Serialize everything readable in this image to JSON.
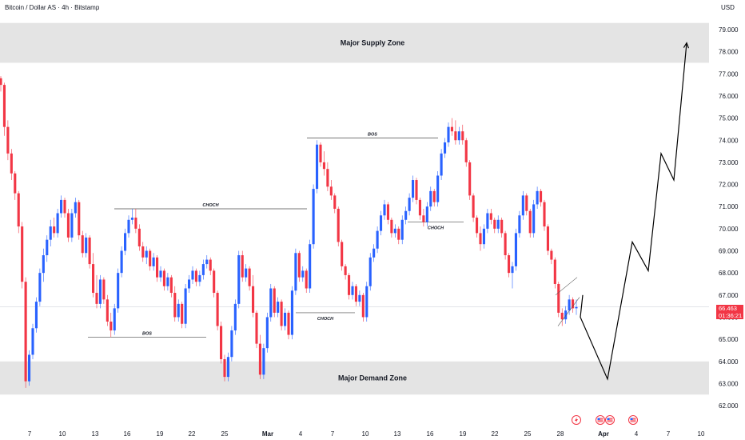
{
  "header": {
    "symbol": "Bitcoin / Dollar AS · 4h · Bitstamp",
    "currency": "USD"
  },
  "price_tag": {
    "price": "66.463",
    "countdown": "01:36:21",
    "color": "#f23645"
  },
  "colors": {
    "up": "#2962ff",
    "down": "#f23645",
    "zone": "#e4e4e4",
    "projection": "#000000"
  },
  "event_icons": [
    "lightning-icon",
    "us-flag-icon",
    "us-flag-icon",
    "us-flag-icon"
  ],
  "chart_data": {
    "type": "candlestick",
    "symbol": "Bitcoin / Dollar AS",
    "timeframe": "4h",
    "exchange": "Bitstamp",
    "y_axis": {
      "label": "USD",
      "ylim": [
        61.6,
        79.9
      ],
      "ticks": [
        "79.000",
        "78.000",
        "77.000",
        "76.000",
        "75.000",
        "74.000",
        "73.000",
        "72.000",
        "71.000",
        "70.000",
        "69.000",
        "68.000",
        "67.000",
        "66.000",
        "65.000",
        "64.000",
        "63.000",
        "62.000"
      ]
    },
    "x_axis": {
      "ticks": [
        "7",
        "10",
        "13",
        "16",
        "19",
        "22",
        "25",
        "Mar",
        "4",
        "7",
        "10",
        "13",
        "16",
        "19",
        "22",
        "25",
        "28",
        "Apr",
        "4",
        "7",
        "10"
      ]
    },
    "zones": [
      {
        "label": "Major Supply Zone",
        "from": 77.5,
        "to": 79.3
      },
      {
        "label": "Major Demand Zone",
        "from": 62.5,
        "to": 64.0
      }
    ],
    "structure_lines": [
      {
        "label": "BOS",
        "value": 65.1
      },
      {
        "label": "CHOCH",
        "value": 70.9
      },
      {
        "label": "BOS",
        "value": 74.1
      },
      {
        "label": "CHOCH",
        "value": 66.2
      },
      {
        "label": "CHOCH",
        "value": 70.3
      }
    ],
    "current_price": 66.463,
    "ohlc": [
      [
        76.8,
        76.9,
        76.2,
        76.5
      ],
      [
        76.5,
        76.6,
        74.2,
        74.6
      ],
      [
        74.6,
        74.9,
        73.1,
        73.4
      ],
      [
        73.4,
        73.6,
        72.2,
        72.5
      ],
      [
        72.5,
        72.6,
        71.3,
        71.6
      ],
      [
        71.6,
        71.7,
        69.8,
        70.1
      ],
      [
        70.1,
        70.3,
        67.3,
        67.6
      ],
      [
        67.6,
        67.8,
        62.8,
        63.1
      ],
      [
        63.1,
        64.5,
        62.9,
        64.3
      ],
      [
        64.3,
        65.7,
        64.1,
        65.5
      ],
      [
        65.5,
        66.9,
        65.3,
        66.7
      ],
      [
        66.7,
        68.2,
        66.5,
        68.0
      ],
      [
        68.0,
        69.1,
        67.6,
        68.8
      ],
      [
        68.8,
        69.7,
        68.5,
        69.5
      ],
      [
        69.5,
        70.4,
        69.2,
        70.1
      ],
      [
        70.1,
        70.5,
        69.6,
        69.8
      ],
      [
        69.8,
        70.9,
        69.6,
        70.7
      ],
      [
        70.7,
        71.5,
        70.5,
        71.3
      ],
      [
        71.3,
        71.4,
        70.5,
        70.7
      ],
      [
        70.7,
        70.9,
        69.4,
        69.6
      ],
      [
        69.6,
        70.9,
        69.4,
        70.7
      ],
      [
        70.7,
        71.4,
        70.5,
        71.2
      ],
      [
        71.2,
        71.3,
        69.5,
        69.7
      ],
      [
        69.7,
        69.9,
        68.7,
        68.9
      ],
      [
        68.9,
        69.8,
        68.7,
        69.6
      ],
      [
        69.6,
        69.7,
        68.2,
        68.4
      ],
      [
        68.4,
        68.9,
        66.9,
        67.1
      ],
      [
        67.1,
        67.9,
        66.4,
        66.6
      ],
      [
        66.6,
        67.9,
        66.4,
        67.7
      ],
      [
        67.7,
        67.8,
        66.6,
        66.8
      ],
      [
        66.8,
        67.0,
        65.6,
        65.8
      ],
      [
        65.8,
        66.2,
        65.1,
        65.4
      ],
      [
        65.4,
        66.6,
        65.2,
        66.4
      ],
      [
        66.4,
        68.2,
        66.2,
        68.0
      ],
      [
        68.0,
        69.2,
        67.8,
        69.0
      ],
      [
        69.0,
        70.0,
        68.8,
        69.8
      ],
      [
        69.8,
        70.6,
        69.6,
        70.4
      ],
      [
        70.4,
        70.9,
        70.2,
        70.5
      ],
      [
        70.5,
        70.9,
        69.8,
        70.0
      ],
      [
        70.0,
        70.2,
        69.0,
        69.2
      ],
      [
        69.2,
        69.4,
        68.5,
        68.7
      ],
      [
        68.7,
        69.2,
        68.4,
        69.0
      ],
      [
        69.0,
        69.1,
        68.1,
        68.3
      ],
      [
        68.3,
        68.9,
        68.1,
        68.7
      ],
      [
        68.7,
        68.8,
        67.6,
        67.8
      ],
      [
        67.8,
        68.3,
        67.6,
        68.1
      ],
      [
        68.1,
        68.2,
        67.2,
        67.4
      ],
      [
        67.4,
        68.0,
        67.2,
        67.8
      ],
      [
        67.8,
        67.9,
        66.9,
        67.1
      ],
      [
        67.1,
        67.4,
        65.8,
        66.0
      ],
      [
        66.0,
        66.8,
        65.8,
        66.6
      ],
      [
        66.6,
        66.7,
        65.5,
        65.7
      ],
      [
        65.7,
        67.5,
        65.5,
        67.3
      ],
      [
        67.3,
        67.9,
        67.1,
        67.7
      ],
      [
        67.7,
        68.3,
        67.5,
        68.1
      ],
      [
        68.1,
        68.2,
        67.4,
        67.6
      ],
      [
        67.6,
        68.1,
        67.4,
        67.9
      ],
      [
        67.9,
        68.6,
        67.7,
        68.4
      ],
      [
        68.4,
        68.8,
        68.2,
        68.6
      ],
      [
        68.6,
        68.7,
        67.9,
        68.1
      ],
      [
        68.1,
        68.2,
        66.9,
        67.1
      ],
      [
        67.1,
        67.2,
        65.4,
        65.6
      ],
      [
        65.6,
        65.8,
        63.9,
        64.1
      ],
      [
        64.1,
        64.3,
        63.1,
        63.3
      ],
      [
        63.3,
        64.4,
        63.1,
        64.2
      ],
      [
        64.2,
        65.6,
        64.0,
        65.4
      ],
      [
        65.4,
        66.8,
        65.2,
        66.6
      ],
      [
        66.6,
        69.0,
        66.4,
        68.8
      ],
      [
        68.8,
        69.0,
        67.6,
        67.8
      ],
      [
        67.8,
        68.4,
        67.6,
        68.2
      ],
      [
        68.2,
        68.3,
        67.2,
        67.4
      ],
      [
        67.4,
        67.9,
        66.0,
        66.2
      ],
      [
        66.2,
        66.3,
        64.6,
        64.8
      ],
      [
        64.8,
        65.2,
        63.2,
        63.4
      ],
      [
        63.4,
        64.8,
        63.2,
        64.6
      ],
      [
        64.6,
        66.2,
        64.4,
        66.0
      ],
      [
        66.0,
        67.5,
        65.8,
        67.3
      ],
      [
        67.3,
        67.4,
        66.0,
        66.2
      ],
      [
        66.2,
        66.9,
        66.0,
        66.7
      ],
      [
        66.7,
        66.8,
        65.4,
        65.6
      ],
      [
        65.6,
        66.4,
        65.4,
        66.2
      ],
      [
        66.2,
        66.3,
        65.0,
        65.2
      ],
      [
        65.2,
        67.4,
        65.0,
        67.2
      ],
      [
        67.2,
        69.1,
        67.0,
        68.9
      ],
      [
        68.9,
        69.0,
        67.6,
        67.8
      ],
      [
        67.8,
        68.3,
        67.6,
        68.1
      ],
      [
        68.1,
        68.2,
        67.1,
        67.3
      ],
      [
        67.3,
        69.5,
        67.1,
        69.3
      ],
      [
        69.3,
        72.0,
        69.1,
        71.8
      ],
      [
        71.8,
        74.0,
        71.6,
        73.8
      ],
      [
        73.8,
        73.9,
        72.8,
        73.0
      ],
      [
        73.0,
        73.5,
        72.4,
        72.7
      ],
      [
        72.7,
        73.0,
        71.7,
        71.9
      ],
      [
        71.9,
        72.2,
        71.3,
        71.5
      ],
      [
        71.5,
        71.6,
        70.7,
        70.9
      ],
      [
        70.9,
        71.0,
        69.2,
        69.4
      ],
      [
        69.4,
        69.5,
        68.1,
        68.3
      ],
      [
        68.3,
        68.4,
        67.7,
        67.9
      ],
      [
        67.9,
        68.0,
        66.8,
        67.0
      ],
      [
        67.0,
        67.6,
        66.8,
        67.4
      ],
      [
        67.4,
        67.5,
        66.5,
        66.7
      ],
      [
        66.7,
        67.2,
        66.5,
        67.0
      ],
      [
        67.0,
        67.1,
        65.8,
        66.0
      ],
      [
        66.0,
        67.6,
        65.8,
        67.4
      ],
      [
        67.4,
        68.9,
        67.2,
        68.7
      ],
      [
        68.7,
        69.3,
        68.5,
        69.1
      ],
      [
        69.1,
        70.1,
        68.9,
        69.9
      ],
      [
        69.9,
        70.8,
        69.7,
        70.6
      ],
      [
        70.6,
        71.3,
        70.4,
        71.1
      ],
      [
        71.1,
        71.2,
        70.2,
        70.4
      ],
      [
        70.4,
        70.5,
        69.6,
        69.8
      ],
      [
        69.8,
        70.2,
        69.6,
        70.0
      ],
      [
        70.0,
        70.1,
        69.3,
        69.5
      ],
      [
        69.5,
        70.6,
        69.3,
        70.4
      ],
      [
        70.4,
        71.0,
        70.2,
        70.8
      ],
      [
        70.8,
        71.6,
        70.6,
        71.4
      ],
      [
        71.4,
        72.4,
        71.2,
        72.2
      ],
      [
        72.2,
        72.3,
        71.1,
        71.3
      ],
      [
        71.3,
        71.4,
        70.4,
        70.6
      ],
      [
        70.6,
        70.9,
        70.1,
        70.3
      ],
      [
        70.3,
        71.2,
        70.1,
        71.0
      ],
      [
        71.0,
        71.9,
        70.8,
        71.7
      ],
      [
        71.7,
        71.8,
        71.0,
        71.2
      ],
      [
        71.2,
        72.6,
        71.0,
        72.4
      ],
      [
        72.4,
        73.6,
        72.2,
        73.4
      ],
      [
        73.4,
        74.1,
        73.2,
        73.9
      ],
      [
        73.9,
        74.8,
        73.7,
        74.6
      ],
      [
        74.6,
        75.0,
        74.2,
        74.4
      ],
      [
        74.4,
        74.9,
        73.8,
        74.0
      ],
      [
        74.0,
        74.6,
        73.8,
        74.4
      ],
      [
        74.4,
        74.7,
        73.8,
        74.0
      ],
      [
        74.0,
        74.1,
        72.8,
        73.0
      ],
      [
        73.0,
        73.1,
        71.3,
        71.5
      ],
      [
        71.5,
        71.6,
        70.3,
        70.5
      ],
      [
        70.5,
        70.6,
        69.6,
        69.8
      ],
      [
        69.8,
        70.1,
        69.0,
        69.3
      ],
      [
        69.3,
        70.2,
        69.1,
        70.0
      ],
      [
        70.0,
        70.9,
        69.8,
        70.7
      ],
      [
        70.7,
        70.9,
        70.2,
        70.4
      ],
      [
        70.4,
        70.5,
        69.8,
        70.0
      ],
      [
        70.0,
        70.6,
        69.8,
        70.4
      ],
      [
        70.4,
        70.5,
        69.6,
        69.8
      ],
      [
        69.8,
        69.9,
        68.6,
        68.8
      ],
      [
        68.8,
        68.9,
        67.8,
        68.0
      ],
      [
        68.0,
        68.5,
        67.3,
        68.3
      ],
      [
        68.3,
        70.0,
        68.1,
        69.8
      ],
      [
        69.8,
        70.8,
        69.6,
        70.6
      ],
      [
        70.6,
        71.7,
        70.4,
        71.5
      ],
      [
        71.5,
        71.6,
        70.6,
        70.8
      ],
      [
        70.8,
        70.9,
        69.6,
        69.8
      ],
      [
        69.8,
        71.3,
        69.6,
        71.1
      ],
      [
        71.1,
        71.9,
        70.9,
        71.7
      ],
      [
        71.7,
        71.8,
        71.0,
        71.2
      ],
      [
        71.2,
        71.3,
        69.9,
        70.1
      ],
      [
        70.1,
        70.2,
        68.8,
        69.0
      ],
      [
        69.0,
        69.1,
        68.4,
        68.6
      ],
      [
        68.6,
        68.7,
        67.3,
        67.5
      ],
      [
        67.5,
        67.6,
        66.0,
        66.2
      ],
      [
        66.2,
        66.4,
        65.6,
        65.9
      ],
      [
        65.9,
        66.5,
        65.7,
        66.3
      ],
      [
        66.3,
        67.0,
        66.1,
        66.8
      ],
      [
        66.8,
        66.9,
        66.2,
        66.4
      ],
      [
        66.4,
        66.8,
        66.1,
        66.46
      ]
    ],
    "projection": [
      [
        729,
        67.0
      ],
      [
        726,
        66.0
      ],
      [
        760,
        63.2
      ],
      [
        791,
        69.4
      ],
      [
        811,
        68.1
      ],
      [
        827,
        73.4
      ],
      [
        843,
        72.2
      ],
      [
        859,
        78.4
      ]
    ],
    "channel": [
      [
        695,
        67.0
      ],
      [
        722,
        67.8
      ],
      [
        698,
        65.6
      ],
      [
        725,
        66.9
      ]
    ]
  }
}
